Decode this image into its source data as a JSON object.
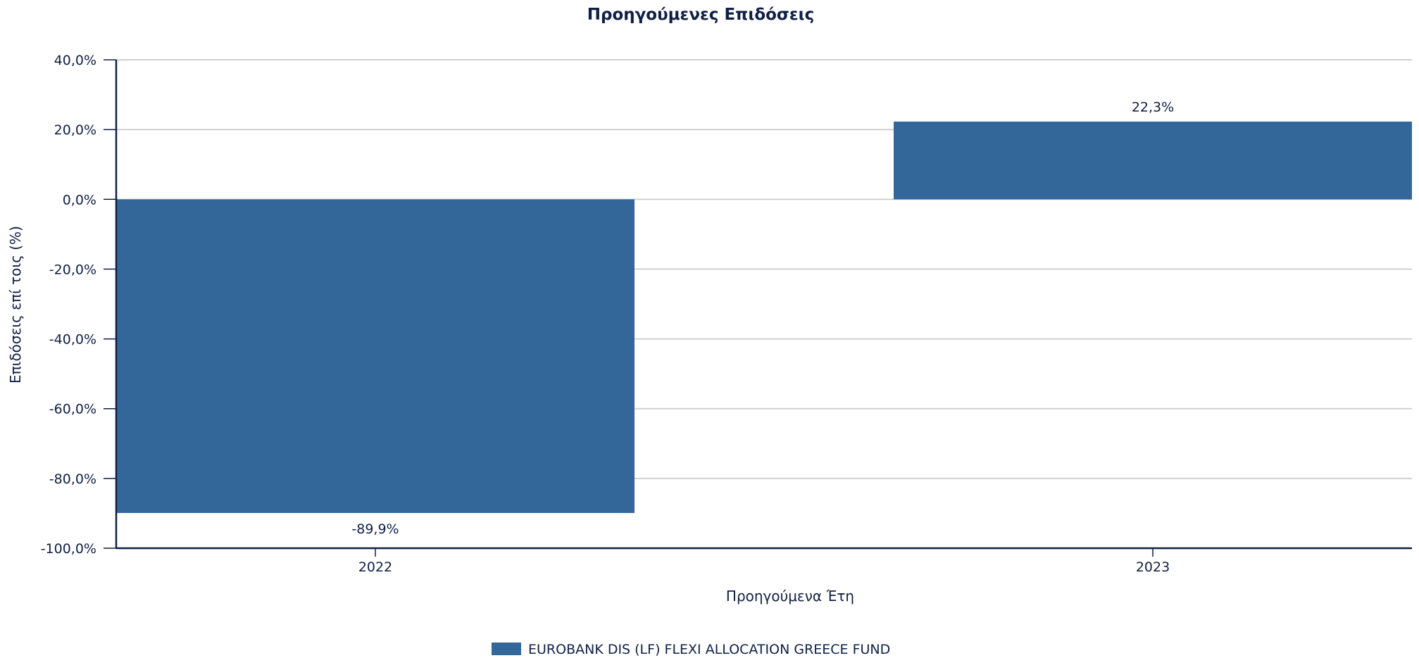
{
  "chart_data": {
    "type": "bar",
    "title": "Προηγούμενες Επιδόσεις",
    "xlabel": "Προηγούμενα Έτη",
    "ylabel": "Επιδόσεις επί τοις (%)",
    "categories": [
      "2022",
      "2023"
    ],
    "series": [
      {
        "name": "EUROBANK DIS (LF) FLEXI ALLOCATION GREECE FUND",
        "values": [
          -89.9,
          22.3
        ],
        "labels": [
          "-89,9%",
          "22,3%"
        ],
        "color": "#336699"
      }
    ],
    "ylim": [
      -100,
      40
    ],
    "yticks": [
      40,
      20,
      0,
      -20,
      -40,
      -60,
      -80,
      -100
    ],
    "ytick_labels": [
      "40,0%",
      "20,0%",
      "0,0%",
      "-20,0%",
      "-40,0%",
      "-60,0%",
      "-80,0%",
      "-100,0%"
    ],
    "grid": true,
    "legend_position": "bottom-center"
  }
}
